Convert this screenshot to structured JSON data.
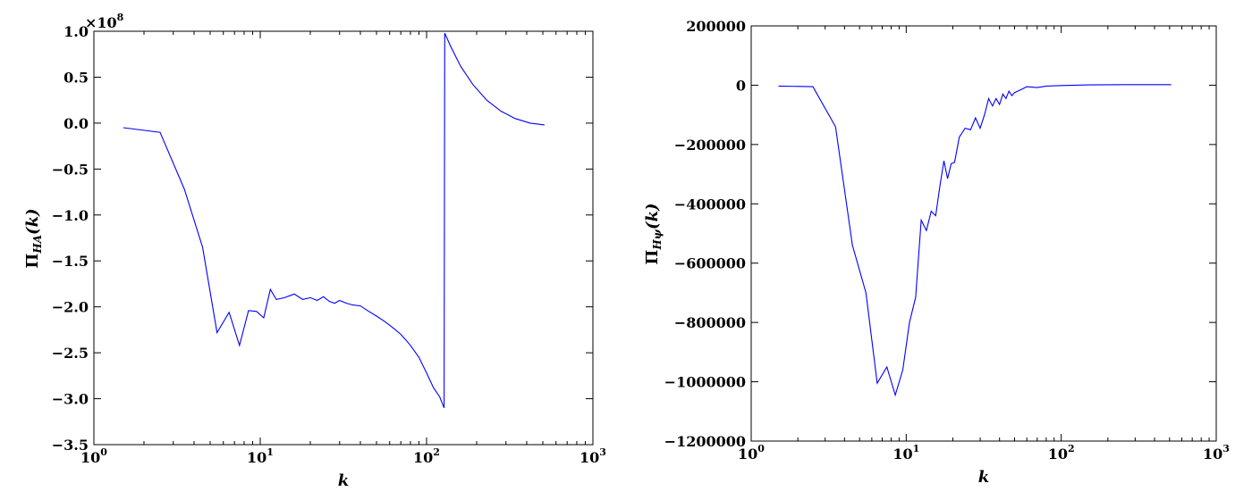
{
  "chart_data": [
    {
      "type": "line",
      "title": "",
      "xlabel": "k",
      "ylabel": {
        "main": "Π",
        "sub": "HA",
        "arg": "(k)"
      },
      "xscale": "log",
      "xlim": [
        1,
        1000
      ],
      "ylim": [
        -3.5,
        1.0
      ],
      "y_multiplier_label": {
        "base": "×10",
        "exp": "8"
      },
      "xticks": [
        1,
        10,
        100,
        1000
      ],
      "xtick_labels": [
        {
          "base": "10",
          "exp": "0"
        },
        {
          "base": "10",
          "exp": "1"
        },
        {
          "base": "10",
          "exp": "2"
        },
        {
          "base": "10",
          "exp": "3"
        }
      ],
      "yticks": [
        -3.5,
        -3.0,
        -2.5,
        -2.0,
        -1.5,
        -1.0,
        -0.5,
        0.0,
        0.5,
        1.0
      ],
      "ytick_labels": [
        "−3.5",
        "−3.0",
        "−2.5",
        "−2.0",
        "−1.5",
        "−1.0",
        "−0.5",
        "0.0",
        "0.5",
        "1.0"
      ],
      "grid": false,
      "color": "#0000ff",
      "x": [
        1.5,
        2.5,
        3.5,
        4.5,
        5.5,
        6.5,
        7.5,
        8.5,
        9.5,
        10.5,
        11.5,
        12.5,
        14,
        16,
        18,
        20,
        22,
        24,
        26,
        28,
        30,
        33,
        36,
        40,
        45,
        50,
        55,
        60,
        65,
        70,
        75,
        80,
        90,
        100,
        110,
        120,
        127.5,
        128.5,
        140,
        160,
        190,
        230,
        280,
        340,
        420,
        512
      ],
      "y": [
        -0.05,
        -0.1,
        -0.72,
        -1.35,
        -2.28,
        -2.06,
        -2.42,
        -2.04,
        -2.05,
        -2.12,
        -1.81,
        -1.92,
        -1.9,
        -1.86,
        -1.92,
        -1.9,
        -1.93,
        -1.89,
        -1.94,
        -1.96,
        -1.93,
        -1.96,
        -1.98,
        -1.99,
        -2.05,
        -2.1,
        -2.15,
        -2.2,
        -2.25,
        -2.3,
        -2.36,
        -2.42,
        -2.55,
        -2.72,
        -2.88,
        -2.98,
        -3.1,
        0.98,
        0.83,
        0.62,
        0.42,
        0.25,
        0.13,
        0.05,
        0.0,
        -0.02
      ]
    },
    {
      "type": "line",
      "title": "",
      "xlabel": "k",
      "ylabel": {
        "main": "Π",
        "sub": "Hψ",
        "arg": "(k)"
      },
      "xscale": "log",
      "xlim": [
        1,
        1000
      ],
      "ylim": [
        -1200000,
        200000
      ],
      "xticks": [
        1,
        10,
        100,
        1000
      ],
      "xtick_labels": [
        {
          "base": "10",
          "exp": "0"
        },
        {
          "base": "10",
          "exp": "1"
        },
        {
          "base": "10",
          "exp": "2"
        },
        {
          "base": "10",
          "exp": "3"
        }
      ],
      "yticks": [
        -1200000,
        -1000000,
        -800000,
        -600000,
        -400000,
        -200000,
        0,
        200000
      ],
      "ytick_labels": [
        "−1200000",
        "−1000000",
        "−800000",
        "−600000",
        "−400000",
        "−200000",
        "0",
        "200000"
      ],
      "grid": false,
      "color": "#0000ff",
      "x": [
        1.5,
        2.5,
        3.5,
        4.5,
        5.5,
        6.5,
        7.5,
        8.5,
        9.5,
        10.5,
        11.5,
        12.5,
        13.5,
        14.5,
        15.5,
        16.5,
        17.5,
        18.5,
        19.5,
        20.5,
        22,
        24,
        26,
        28,
        30,
        32,
        34,
        36,
        38,
        40,
        42,
        44,
        46,
        48,
        50,
        55,
        60,
        70,
        80,
        100,
        150,
        250,
        512
      ],
      "y": [
        -3000,
        -5000,
        -140000,
        -540000,
        -700000,
        -1005000,
        -950000,
        -1045000,
        -960000,
        -800000,
        -715000,
        -455000,
        -490000,
        -425000,
        -440000,
        -340000,
        -255000,
        -315000,
        -265000,
        -260000,
        -175000,
        -145000,
        -150000,
        -110000,
        -145000,
        -100000,
        -45000,
        -70000,
        -45000,
        -65000,
        -30000,
        -45000,
        -20000,
        -35000,
        -25000,
        -15000,
        -5000,
        -8000,
        -3000,
        -1000,
        1000,
        2000,
        2000
      ]
    }
  ]
}
